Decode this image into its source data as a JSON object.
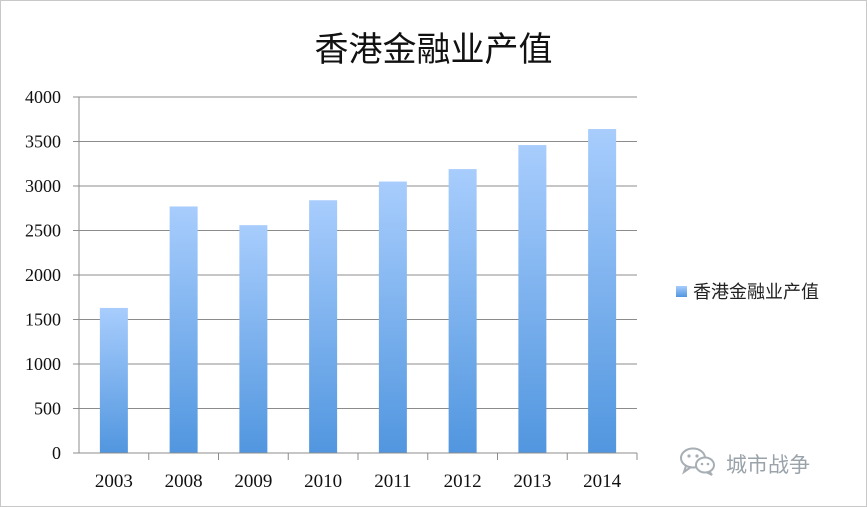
{
  "chart_data": {
    "type": "bar",
    "title": "香港金融业产值",
    "categories": [
      "2003",
      "2008",
      "2009",
      "2010",
      "2011",
      "2012",
      "2013",
      "2014"
    ],
    "series": [
      {
        "name": "香港金融业产值",
        "values": [
          1630,
          2770,
          2560,
          2840,
          3050,
          3190,
          3460,
          3640
        ]
      }
    ],
    "ylim": [
      0,
      4000
    ],
    "yticks": [
      0,
      500,
      1000,
      1500,
      2000,
      2500,
      3000,
      3500,
      4000
    ],
    "grid": true,
    "legend_position": "right",
    "bar_colors": {
      "top": "#a8cdfd",
      "bottom": "#5196df"
    }
  },
  "watermark": {
    "text": "城市战争",
    "icon": "wechat-icon"
  }
}
